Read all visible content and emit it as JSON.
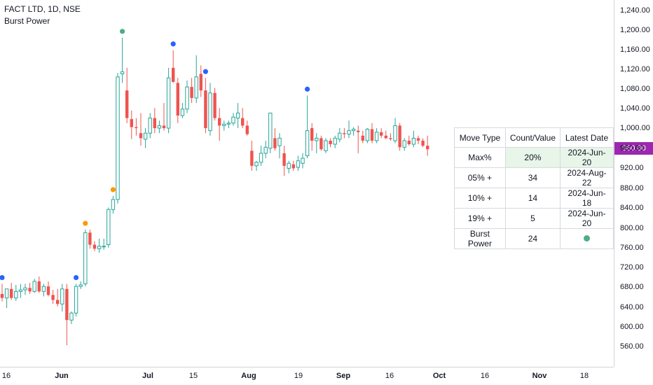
{
  "legend": {
    "symbol": "FACT LTD, 1D, NSE",
    "indicator": "Burst Power"
  },
  "price_scale": {
    "ticks": [
      "1,240.00",
      "1,200.00",
      "1,160.00",
      "1,120.00",
      "1,080.00",
      "1,040.00",
      "1,000.00",
      "960.00",
      "920.00",
      "880.00",
      "840.00",
      "800.00",
      "760.00",
      "720.00",
      "680.00",
      "640.00",
      "600.00",
      "560.00"
    ],
    "last_price": "960.80",
    "last_price_color": "#9c27b0"
  },
  "time_scale": {
    "labels": [
      "16",
      "Jun",
      "Jul",
      "15",
      "Aug",
      "19",
      "Sep",
      "16",
      "Oct",
      "16",
      "Nov",
      "18"
    ]
  },
  "colors": {
    "up": "#26a69a",
    "down": "#ef5350",
    "marker_blue": "#2962ff",
    "marker_green": "#4caf82",
    "marker_orange": "#ff9800"
  },
  "table": {
    "headers": [
      "Move Type",
      "Count/Value",
      "Latest Date"
    ],
    "rows": [
      [
        "Max%",
        "20%",
        "2024-Jun-20"
      ],
      [
        "05% +",
        "34",
        "2024-Aug-22"
      ],
      [
        "10% +",
        "14",
        "2024-Jun-18"
      ],
      [
        "19% +",
        "5",
        "2024-Jun-20"
      ],
      [
        "Burst Power",
        "24",
        ""
      ]
    ]
  },
  "chart_data": {
    "type": "candlestick",
    "series": [
      {
        "o": 680,
        "h": 700,
        "l": 665,
        "c": 672
      },
      {
        "o": 672,
        "h": 690,
        "l": 652,
        "c": 690
      },
      {
        "o": 690,
        "h": 702,
        "l": 668,
        "c": 672
      },
      {
        "o": 672,
        "h": 698,
        "l": 666,
        "c": 685
      },
      {
        "o": 685,
        "h": 700,
        "l": 672,
        "c": 688
      },
      {
        "o": 688,
        "h": 700,
        "l": 678,
        "c": 692
      },
      {
        "o": 692,
        "h": 702,
        "l": 680,
        "c": 685
      },
      {
        "o": 685,
        "h": 710,
        "l": 682,
        "c": 705
      },
      {
        "o": 705,
        "h": 715,
        "l": 682,
        "c": 685
      },
      {
        "o": 685,
        "h": 700,
        "l": 675,
        "c": 695
      },
      {
        "o": 695,
        "h": 705,
        "l": 675,
        "c": 678
      },
      {
        "o": 678,
        "h": 688,
        "l": 660,
        "c": 668
      },
      {
        "o": 668,
        "h": 690,
        "l": 655,
        "c": 660
      },
      {
        "o": 660,
        "h": 700,
        "l": 645,
        "c": 690
      },
      {
        "o": 690,
        "h": 700,
        "l": 578,
        "c": 628
      },
      {
        "o": 628,
        "h": 645,
        "l": 620,
        "c": 642
      },
      {
        "o": 642,
        "h": 700,
        "l": 635,
        "c": 695
      },
      {
        "o": 695,
        "h": 705,
        "l": 690,
        "c": 698
      },
      {
        "o": 700,
        "h": 808,
        "l": 695,
        "c": 802
      },
      {
        "o": 802,
        "h": 808,
        "l": 770,
        "c": 778
      },
      {
        "o": 778,
        "h": 785,
        "l": 765,
        "c": 770
      },
      {
        "o": 770,
        "h": 790,
        "l": 762,
        "c": 775
      },
      {
        "o": 775,
        "h": 790,
        "l": 768,
        "c": 775
      },
      {
        "o": 778,
        "h": 852,
        "l": 772,
        "c": 848
      },
      {
        "o": 848,
        "h": 875,
        "l": 840,
        "c": 868
      },
      {
        "o": 868,
        "h": 1120,
        "l": 860,
        "c": 1112
      },
      {
        "o": 1118,
        "h": 1190,
        "l": 1100,
        "c": 1122
      },
      {
        "o": 1085,
        "h": 1130,
        "l": 1020,
        "c": 1030
      },
      {
        "o": 1028,
        "h": 1045,
        "l": 988,
        "c": 1012
      },
      {
        "o": 1012,
        "h": 1030,
        "l": 995,
        "c": 1010
      },
      {
        "o": 1000,
        "h": 1040,
        "l": 975,
        "c": 990
      },
      {
        "o": 988,
        "h": 1010,
        "l": 970,
        "c": 1000
      },
      {
        "o": 1000,
        "h": 1040,
        "l": 990,
        "c": 1030
      },
      {
        "o": 1030,
        "h": 1050,
        "l": 1000,
        "c": 1010
      },
      {
        "o": 1010,
        "h": 1025,
        "l": 1000,
        "c": 1015
      },
      {
        "o": 1015,
        "h": 1060,
        "l": 1005,
        "c": 1010
      },
      {
        "o": 1010,
        "h": 1130,
        "l": 1000,
        "c": 1110
      },
      {
        "o": 1130,
        "h": 1165,
        "l": 1100,
        "c": 1102
      },
      {
        "o": 1100,
        "h": 1110,
        "l": 1020,
        "c": 1035
      },
      {
        "o": 1035,
        "h": 1060,
        "l": 1030,
        "c": 1048
      },
      {
        "o": 1048,
        "h": 1105,
        "l": 1040,
        "c": 1092
      },
      {
        "o": 1092,
        "h": 1110,
        "l": 1060,
        "c": 1070
      },
      {
        "o": 1070,
        "h": 1155,
        "l": 1060,
        "c": 1112
      },
      {
        "o": 1118,
        "h": 1135,
        "l": 1072,
        "c": 1085
      },
      {
        "o": 1085,
        "h": 1110,
        "l": 1000,
        "c": 1010
      },
      {
        "o": 1005,
        "h": 1100,
        "l": 995,
        "c": 1080
      },
      {
        "o": 1080,
        "h": 1090,
        "l": 1025,
        "c": 1030
      },
      {
        "o": 1030,
        "h": 1050,
        "l": 985,
        "c": 1015
      },
      {
        "o": 1015,
        "h": 1025,
        "l": 1005,
        "c": 1018
      },
      {
        "o": 1018,
        "h": 1025,
        "l": 1010,
        "c": 1020
      },
      {
        "o": 1020,
        "h": 1040,
        "l": 1015,
        "c": 1032
      },
      {
        "o": 1030,
        "h": 1060,
        "l": 1010,
        "c": 1040
      },
      {
        "o": 1030,
        "h": 1050,
        "l": 1010,
        "c": 1015
      },
      {
        "o": 1015,
        "h": 1025,
        "l": 995,
        "c": 998
      },
      {
        "o": 965,
        "h": 985,
        "l": 925,
        "c": 935
      },
      {
        "o": 935,
        "h": 945,
        "l": 925,
        "c": 942
      },
      {
        "o": 942,
        "h": 975,
        "l": 935,
        "c": 960
      },
      {
        "o": 960,
        "h": 985,
        "l": 950,
        "c": 972
      },
      {
        "o": 970,
        "h": 1040,
        "l": 960,
        "c": 1040
      },
      {
        "o": 990,
        "h": 1010,
        "l": 965,
        "c": 970
      },
      {
        "o": 975,
        "h": 1000,
        "l": 950,
        "c": 990
      },
      {
        "o": 960,
        "h": 975,
        "l": 915,
        "c": 935
      },
      {
        "o": 930,
        "h": 945,
        "l": 920,
        "c": 940
      },
      {
        "o": 938,
        "h": 945,
        "l": 925,
        "c": 930
      },
      {
        "o": 932,
        "h": 955,
        "l": 925,
        "c": 945
      },
      {
        "o": 940,
        "h": 960,
        "l": 930,
        "c": 950
      },
      {
        "o": 955,
        "h": 1075,
        "l": 950,
        "c": 1005
      },
      {
        "o": 1010,
        "h": 1020,
        "l": 965,
        "c": 985
      },
      {
        "o": 985,
        "h": 1000,
        "l": 960,
        "c": 990
      },
      {
        "o": 990,
        "h": 995,
        "l": 965,
        "c": 968
      },
      {
        "o": 965,
        "h": 990,
        "l": 960,
        "c": 985
      },
      {
        "o": 985,
        "h": 990,
        "l": 972,
        "c": 978
      },
      {
        "o": 978,
        "h": 995,
        "l": 970,
        "c": 990
      },
      {
        "o": 988,
        "h": 1010,
        "l": 982,
        "c": 1000
      },
      {
        "o": 1000,
        "h": 1010,
        "l": 990,
        "c": 998
      },
      {
        "o": 998,
        "h": 1025,
        "l": 990,
        "c": 1005
      },
      {
        "o": 1005,
        "h": 1012,
        "l": 995,
        "c": 1008
      },
      {
        "o": 1005,
        "h": 1015,
        "l": 960,
        "c": 1002
      },
      {
        "o": 995,
        "h": 1005,
        "l": 980,
        "c": 985
      },
      {
        "o": 985,
        "h": 1010,
        "l": 980,
        "c": 1008
      },
      {
        "o": 1008,
        "h": 1020,
        "l": 980,
        "c": 985
      },
      {
        "o": 985,
        "h": 1010,
        "l": 980,
        "c": 1002
      },
      {
        "o": 1002,
        "h": 1010,
        "l": 990,
        "c": 995
      },
      {
        "o": 995,
        "h": 1005,
        "l": 988,
        "c": 990
      },
      {
        "o": 990,
        "h": 1000,
        "l": 985,
        "c": 988
      },
      {
        "o": 985,
        "h": 1030,
        "l": 980,
        "c": 1015
      },
      {
        "o": 1015,
        "h": 1020,
        "l": 965,
        "c": 972
      },
      {
        "o": 972,
        "h": 990,
        "l": 965,
        "c": 985
      },
      {
        "o": 985,
        "h": 995,
        "l": 975,
        "c": 978
      },
      {
        "o": 978,
        "h": 1005,
        "l": 972,
        "c": 990
      },
      {
        "o": 990,
        "h": 995,
        "l": 978,
        "c": 985
      },
      {
        "o": 985,
        "h": 990,
        "l": 972,
        "c": 975
      },
      {
        "o": 975,
        "h": 995,
        "l": 955,
        "c": 968
      }
    ],
    "markers": [
      {
        "i": 0,
        "color": "blue"
      },
      {
        "i": 16,
        "color": "blue"
      },
      {
        "i": 18,
        "color": "orange"
      },
      {
        "i": 24,
        "color": "orange"
      },
      {
        "i": 26,
        "color": "green"
      },
      {
        "i": 37,
        "color": "blue"
      },
      {
        "i": 44,
        "color": "blue"
      },
      {
        "i": 66,
        "color": "blue"
      }
    ],
    "ylim": [
      535,
      1265
    ]
  }
}
